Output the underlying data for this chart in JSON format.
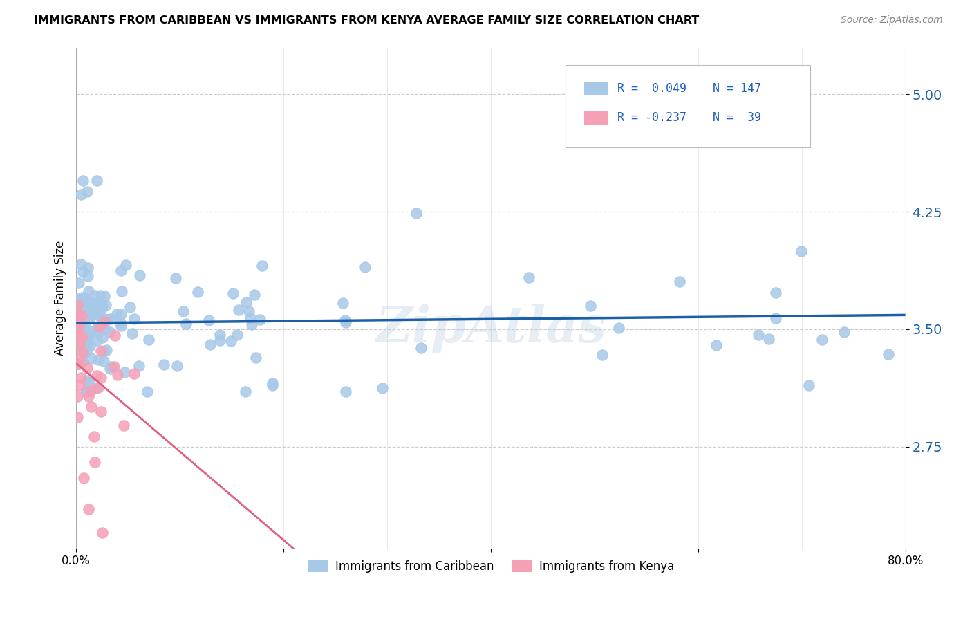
{
  "title": "IMMIGRANTS FROM CARIBBEAN VS IMMIGRANTS FROM KENYA AVERAGE FAMILY SIZE CORRELATION CHART",
  "source": "Source: ZipAtlas.com",
  "ylabel": "Average Family Size",
  "y_ticks": [
    2.75,
    3.5,
    4.25,
    5.0
  ],
  "x_lim": [
    0.0,
    0.8
  ],
  "y_lim": [
    2.1,
    5.3
  ],
  "caribbean_color": "#a8c8e8",
  "kenya_color": "#f5a0b5",
  "caribbean_R": 0.049,
  "caribbean_N": 147,
  "kenya_R": -0.237,
  "kenya_N": 39,
  "trend_blue_color": "#1a5fa8",
  "trend_pink_solid_color": "#e06080",
  "trend_pink_dash_color": "#e8a0b0",
  "watermark": "ZipAtlas",
  "legend_r1": "R =  0.049",
  "legend_n1": "N = 147",
  "legend_r2": "R = -0.237",
  "legend_n2": "N =  39",
  "legend_color": "#2060c0",
  "bottom_legend_carib": "Immigrants from Caribbean",
  "bottom_legend_kenya": "Immigrants from Kenya"
}
